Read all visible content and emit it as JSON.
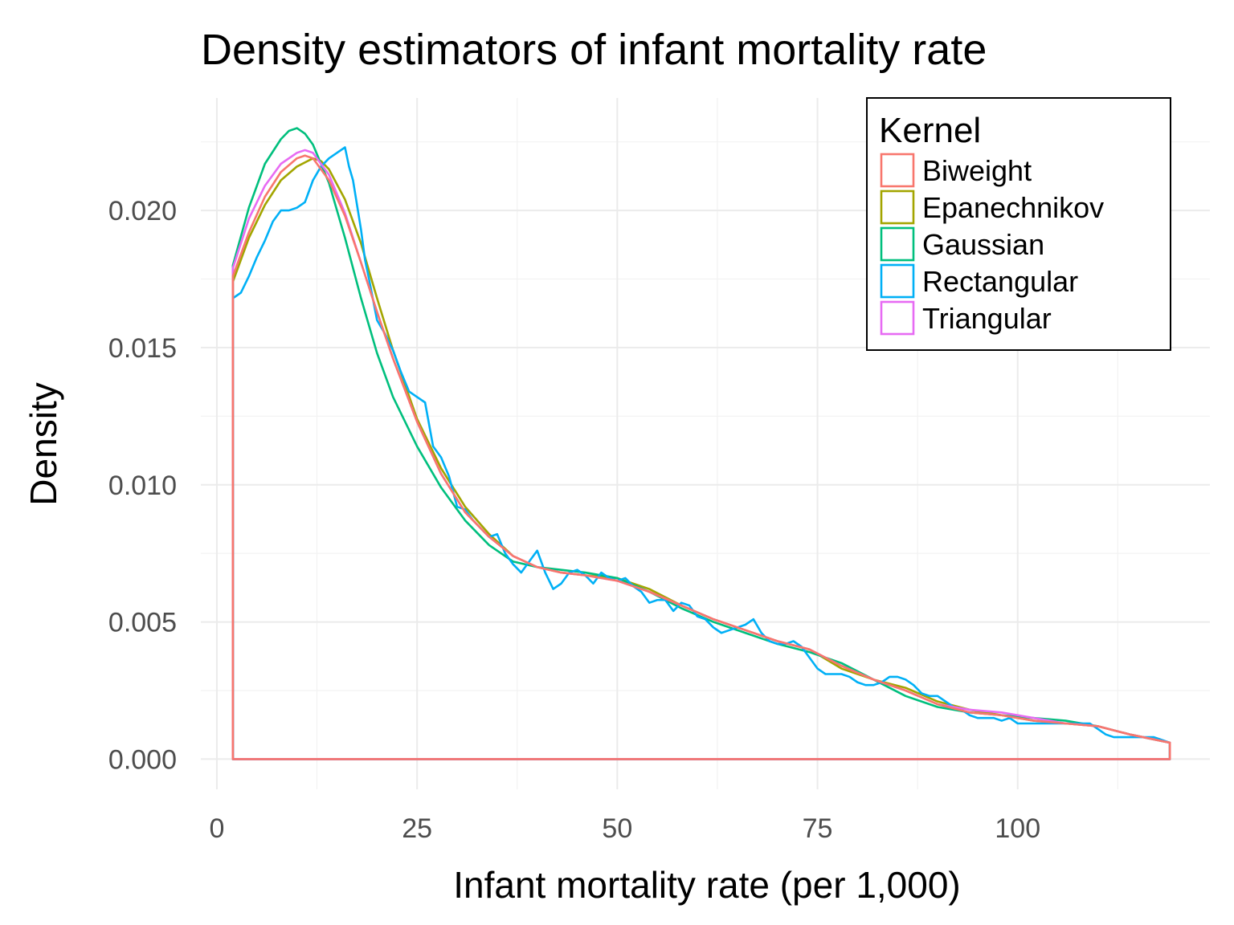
{
  "chart_data": {
    "type": "line",
    "title": "Density estimators of infant mortality rate",
    "xlabel": "Infant mortality rate (per 1,000)",
    "ylabel": "Density",
    "xlim": [
      -2,
      124
    ],
    "ylim": [
      -0.0011,
      0.0241
    ],
    "x_ticks": [
      0,
      25,
      50,
      75,
      100
    ],
    "x_tick_labels": [
      "0",
      "25",
      "50",
      "75",
      "100"
    ],
    "y_ticks": [
      0,
      0.005,
      0.01,
      0.015,
      0.02
    ],
    "y_tick_labels": [
      "0.000",
      "0.005",
      "0.010",
      "0.015",
      "0.020"
    ],
    "grid": true,
    "legend": {
      "title": "Kernel",
      "position": "top-right"
    },
    "series": [
      {
        "name": "Biweight",
        "color": "#F8766D",
        "x": [
          2,
          4,
          6,
          8,
          10,
          11,
          12,
          14,
          16,
          18,
          20,
          22,
          25,
          28,
          31,
          34,
          37,
          40,
          43,
          46,
          50,
          54,
          58,
          62,
          66,
          70,
          74,
          78,
          82,
          86,
          90,
          94,
          98,
          102,
          106,
          110,
          114,
          119
        ],
        "y": [
          0.0176,
          0.0192,
          0.0205,
          0.0214,
          0.0219,
          0.022,
          0.0219,
          0.0211,
          0.0198,
          0.0181,
          0.0163,
          0.0146,
          0.0123,
          0.0104,
          0.009,
          0.0081,
          0.0074,
          0.007,
          0.0068,
          0.0067,
          0.0065,
          0.0061,
          0.0056,
          0.0051,
          0.0047,
          0.0043,
          0.004,
          0.0034,
          0.0029,
          0.0025,
          0.002,
          0.0017,
          0.0016,
          0.0014,
          0.0013,
          0.0012,
          0.0009,
          0.0006
        ]
      },
      {
        "name": "Epanechnikov",
        "color": "#A3A500",
        "x": [
          2,
          4,
          6,
          8,
          10,
          12,
          13,
          14,
          16,
          18,
          20,
          22,
          25,
          28,
          31,
          34,
          37,
          40,
          43,
          46,
          50,
          54,
          58,
          62,
          66,
          70,
          74,
          78,
          82,
          86,
          90,
          94,
          98,
          102,
          106,
          110,
          114,
          119
        ],
        "y": [
          0.0174,
          0.019,
          0.0202,
          0.0211,
          0.0216,
          0.0219,
          0.0218,
          0.0215,
          0.0204,
          0.0188,
          0.0168,
          0.0149,
          0.0124,
          0.0106,
          0.0092,
          0.0082,
          0.0074,
          0.007,
          0.0068,
          0.0067,
          0.0066,
          0.0062,
          0.0056,
          0.0051,
          0.0047,
          0.0043,
          0.004,
          0.0033,
          0.0029,
          0.0026,
          0.0021,
          0.0018,
          0.0016,
          0.0014,
          0.0013,
          0.0012,
          0.0009,
          0.0006
        ]
      },
      {
        "name": "Gaussian",
        "color": "#00BF7D",
        "x": [
          2,
          4,
          6,
          8,
          9,
          10,
          11,
          12,
          14,
          16,
          18,
          20,
          22,
          25,
          28,
          31,
          34,
          37,
          40,
          43,
          46,
          50,
          54,
          58,
          62,
          66,
          70,
          74,
          78,
          82,
          86,
          90,
          94,
          98,
          102,
          106,
          110,
          114,
          119
        ],
        "y": [
          0.018,
          0.0201,
          0.0217,
          0.0226,
          0.0229,
          0.023,
          0.0228,
          0.0224,
          0.021,
          0.019,
          0.0168,
          0.0148,
          0.0132,
          0.0114,
          0.0099,
          0.0087,
          0.0078,
          0.0072,
          0.007,
          0.0069,
          0.0068,
          0.0066,
          0.0061,
          0.0055,
          0.005,
          0.0046,
          0.0042,
          0.0039,
          0.0035,
          0.0029,
          0.0023,
          0.0019,
          0.0017,
          0.0016,
          0.0015,
          0.0014,
          0.0012,
          0.0009,
          0.0006
        ]
      },
      {
        "name": "Rectangular",
        "color": "#00B0F6",
        "x": [
          2,
          2.5,
          3,
          4,
          5,
          6,
          7,
          8,
          9,
          10,
          11,
          12,
          13,
          14,
          15,
          16,
          16.5,
          17,
          18,
          18.5,
          19,
          20,
          21,
          22,
          23,
          24,
          25,
          26,
          27,
          28,
          29,
          30,
          31,
          32,
          33,
          34,
          35,
          36,
          37,
          38,
          39,
          40,
          41,
          42,
          43,
          44,
          45,
          46,
          47,
          48,
          49,
          50,
          51,
          52,
          53,
          54,
          55,
          56,
          57,
          58,
          59,
          60,
          61,
          62,
          63,
          64,
          65,
          66,
          67,
          68,
          69,
          70,
          71,
          72,
          73,
          74,
          75,
          76,
          77,
          78,
          79,
          80,
          81,
          82,
          83,
          84,
          85,
          86,
          87,
          88,
          89,
          90,
          91,
          92,
          93,
          94,
          95,
          96,
          97,
          98,
          99,
          100,
          101,
          102,
          103,
          104,
          105,
          106,
          107,
          108,
          109,
          110,
          111,
          112,
          113,
          114,
          115,
          116,
          117,
          118,
          119
        ],
        "y": [
          0.0168,
          0.0169,
          0.017,
          0.0176,
          0.0183,
          0.0189,
          0.0196,
          0.02,
          0.02,
          0.0201,
          0.0203,
          0.0211,
          0.0216,
          0.0219,
          0.0221,
          0.0223,
          0.0216,
          0.0211,
          0.0193,
          0.0182,
          0.0175,
          0.016,
          0.0155,
          0.0149,
          0.0141,
          0.0134,
          0.0132,
          0.013,
          0.0114,
          0.011,
          0.0103,
          0.0092,
          0.0091,
          0.0087,
          0.0084,
          0.0081,
          0.0082,
          0.0075,
          0.0071,
          0.0068,
          0.0072,
          0.0076,
          0.0068,
          0.0062,
          0.0064,
          0.0068,
          0.0069,
          0.0067,
          0.0064,
          0.0068,
          0.0066,
          0.0065,
          0.0066,
          0.0063,
          0.0061,
          0.0057,
          0.0058,
          0.0058,
          0.0054,
          0.0057,
          0.0056,
          0.0052,
          0.0051,
          0.0048,
          0.0046,
          0.0047,
          0.0048,
          0.0049,
          0.0051,
          0.0046,
          0.0043,
          0.0042,
          0.0042,
          0.0043,
          0.0041,
          0.0037,
          0.0033,
          0.0031,
          0.0031,
          0.0031,
          0.003,
          0.0028,
          0.0027,
          0.0027,
          0.0028,
          0.003,
          0.003,
          0.0029,
          0.0027,
          0.0024,
          0.0023,
          0.0023,
          0.0021,
          0.0019,
          0.0018,
          0.0016,
          0.0015,
          0.0015,
          0.0015,
          0.0014,
          0.0015,
          0.0013,
          0.0013,
          0.0013,
          0.0013,
          0.0013,
          0.0013,
          0.0013,
          0.0013,
          0.0013,
          0.0013,
          0.0011,
          0.0009,
          0.0008,
          0.0008,
          0.0008,
          0.0008,
          0.0008,
          0.0008,
          0.0007,
          0.0006
        ]
      },
      {
        "name": "Triangular",
        "color": "#E76BF3",
        "x": [
          2,
          4,
          6,
          8,
          10,
          11,
          12,
          14,
          16,
          18,
          20,
          22,
          25,
          28,
          31,
          34,
          37,
          40,
          43,
          46,
          50,
          54,
          58,
          62,
          66,
          70,
          74,
          78,
          82,
          86,
          90,
          94,
          98,
          102,
          106,
          110,
          114,
          119
        ],
        "y": [
          0.0179,
          0.0197,
          0.0209,
          0.0217,
          0.0221,
          0.0222,
          0.0221,
          0.0213,
          0.0199,
          0.0181,
          0.0163,
          0.0146,
          0.0123,
          0.0104,
          0.009,
          0.0081,
          0.0074,
          0.007,
          0.0068,
          0.0067,
          0.0065,
          0.0061,
          0.0056,
          0.0051,
          0.0047,
          0.0043,
          0.004,
          0.0034,
          0.0029,
          0.0025,
          0.002,
          0.0018,
          0.0017,
          0.0015,
          0.0013,
          0.0012,
          0.0009,
          0.0006
        ]
      }
    ]
  }
}
